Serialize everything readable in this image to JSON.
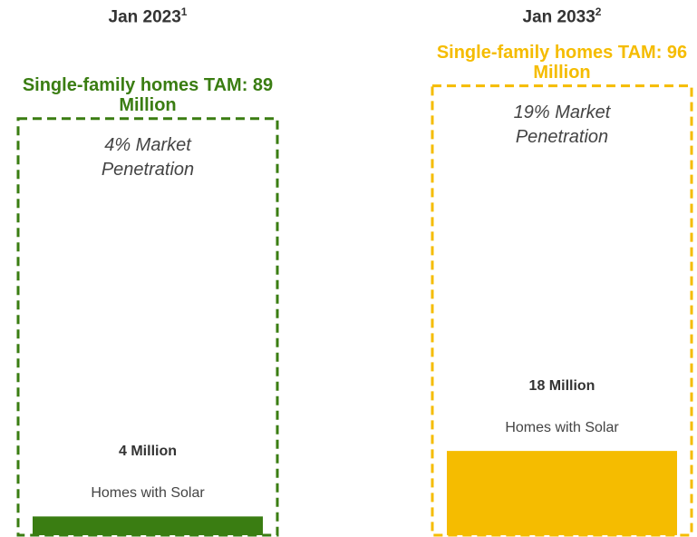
{
  "chart_data": {
    "type": "tam",
    "panels": [
      {
        "title": "Jan 2023",
        "note": "1",
        "tam_label": "Single-family homes TAM: 89 Million",
        "tam": 89,
        "penetration_label": "4% Market Penetration",
        "homes": 4,
        "homes_label": "4 Million",
        "homes_caption": "Homes with Solar",
        "color": "#3a7d12"
      },
      {
        "title": "Jan 2033",
        "note": "2",
        "tam_label": "Single-family homes TAM: 96 Million",
        "tam": 96,
        "penetration_label": "19% Market Penetration",
        "homes": 18,
        "homes_label": "18 Million",
        "homes_caption": "Homes with Solar",
        "color": "#f5bc00"
      }
    ]
  }
}
